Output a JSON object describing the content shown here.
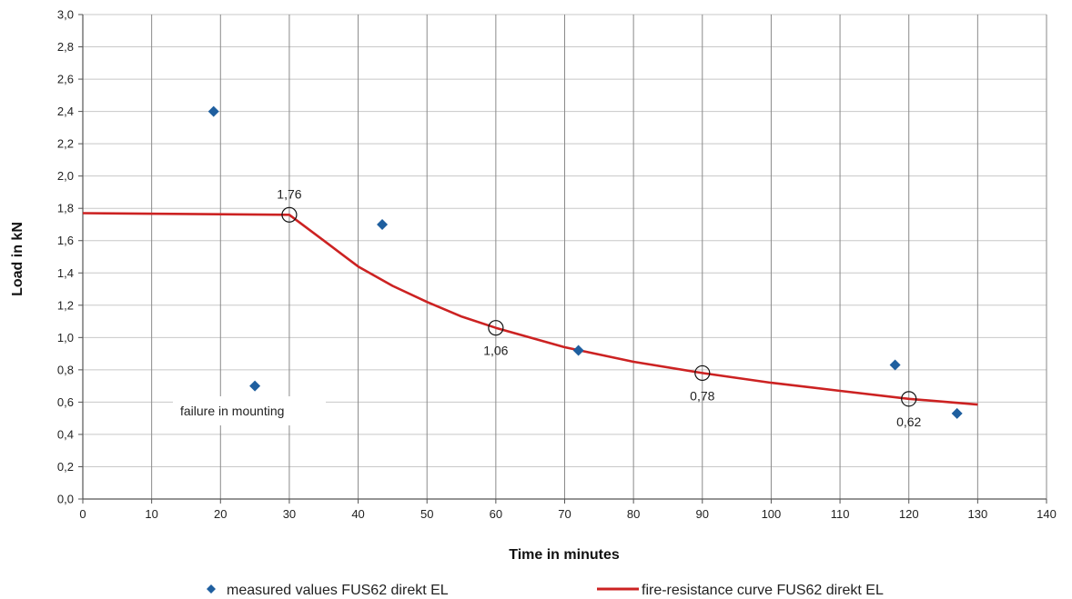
{
  "chart_data": {
    "type": "scatter",
    "xlabel": "Time in minutes",
    "ylabel": "Load in kN",
    "xlim": [
      0,
      140
    ],
    "ylim": [
      0,
      3.0
    ],
    "x_ticks": [
      "0",
      "10",
      "20",
      "30",
      "40",
      "50",
      "60",
      "70",
      "80",
      "90",
      "100",
      "110",
      "120",
      "130",
      "140"
    ],
    "y_ticks": [
      "0,0",
      "0,2",
      "0,4",
      "0,6",
      "0,8",
      "1,0",
      "1,2",
      "1,4",
      "1,6",
      "1,8",
      "2,0",
      "2,2",
      "2,4",
      "2,6",
      "2,8",
      "3,0"
    ],
    "grid": true,
    "legend_position": "bottom",
    "series": [
      {
        "name": "measured values FUS62 direkt EL",
        "kind": "scatter",
        "marker": "diamond",
        "color": "#1f5f9f",
        "points": [
          {
            "x": 19,
            "y": 2.4
          },
          {
            "x": 25,
            "y": 0.7
          },
          {
            "x": 43.5,
            "y": 1.7
          },
          {
            "x": 72,
            "y": 0.92
          },
          {
            "x": 118,
            "y": 0.83
          },
          {
            "x": 127,
            "y": 0.53
          }
        ]
      },
      {
        "name": "fire-resistance curve FUS62 direkt EL",
        "kind": "line",
        "color": "#cc2222",
        "points": [
          {
            "x": 0,
            "y": 1.77
          },
          {
            "x": 30,
            "y": 1.76
          },
          {
            "x": 35,
            "y": 1.6
          },
          {
            "x": 40,
            "y": 1.44
          },
          {
            "x": 45,
            "y": 1.32
          },
          {
            "x": 50,
            "y": 1.22
          },
          {
            "x": 55,
            "y": 1.13
          },
          {
            "x": 60,
            "y": 1.06
          },
          {
            "x": 70,
            "y": 0.94
          },
          {
            "x": 80,
            "y": 0.85
          },
          {
            "x": 90,
            "y": 0.78
          },
          {
            "x": 100,
            "y": 0.72
          },
          {
            "x": 110,
            "y": 0.67
          },
          {
            "x": 120,
            "y": 0.62
          },
          {
            "x": 130,
            "y": 0.585
          }
        ]
      }
    ],
    "annotations": [
      {
        "x": 30,
        "y": 1.76,
        "label": "1,76",
        "label_position": "above"
      },
      {
        "x": 60,
        "y": 1.06,
        "label": "1,06",
        "label_position": "below"
      },
      {
        "x": 90,
        "y": 0.78,
        "label": "0,78",
        "label_position": "below"
      },
      {
        "x": 120,
        "y": 0.62,
        "label": "0,62",
        "label_position": "below"
      }
    ],
    "note": {
      "text": "failure in mounting",
      "anchor_x": 25,
      "anchor_y": 0.7
    }
  }
}
